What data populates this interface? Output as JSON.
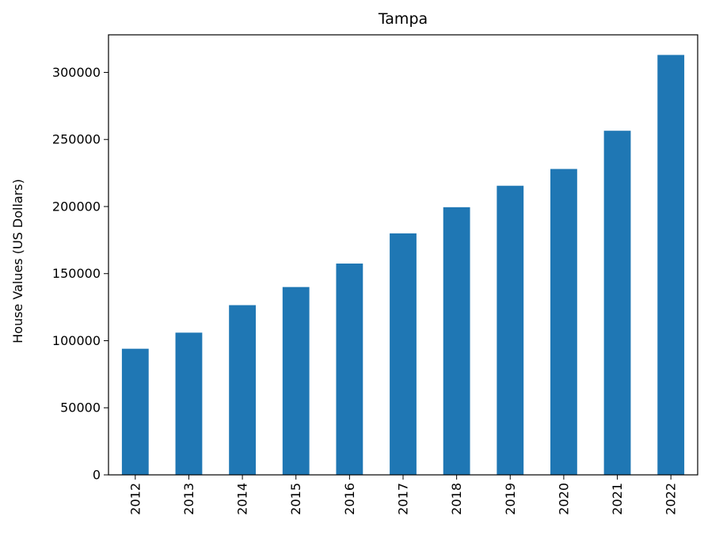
{
  "chart_data": {
    "type": "bar",
    "title": "Tampa",
    "xlabel": "",
    "ylabel": "House Values (US Dollars)",
    "categories": [
      "2012",
      "2013",
      "2014",
      "2015",
      "2016",
      "2017",
      "2018",
      "2019",
      "2020",
      "2021",
      "2022"
    ],
    "values": [
      94000,
      106000,
      126500,
      140000,
      157500,
      180000,
      199500,
      215500,
      228000,
      256500,
      313000
    ],
    "ylim": [
      0,
      328000
    ],
    "yticks": [
      0,
      50000,
      100000,
      150000,
      200000,
      250000,
      300000
    ],
    "ytick_labels": [
      "0",
      "50000",
      "100000",
      "150000",
      "200000",
      "250000",
      "300000"
    ],
    "bar_color": "#1f77b4",
    "grid": false,
    "legend": "none"
  }
}
